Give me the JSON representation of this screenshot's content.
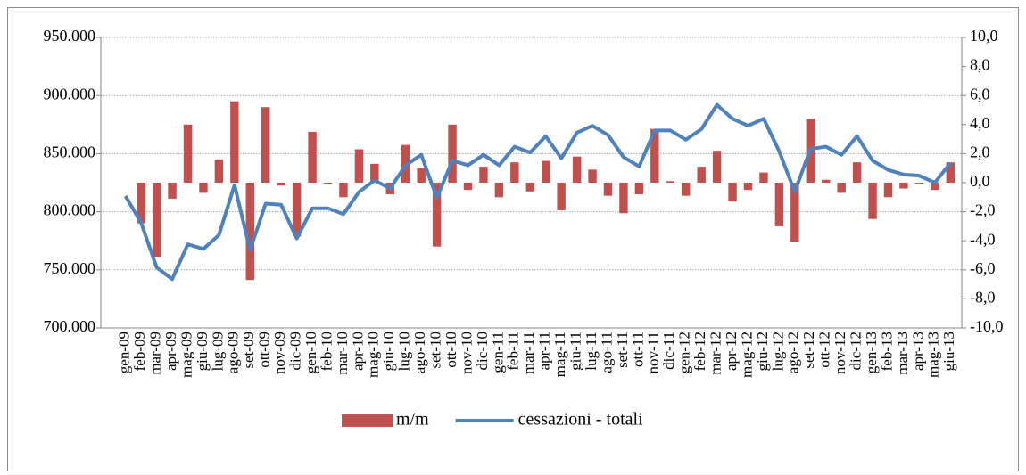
{
  "chart_data": {
    "type": "bar-line",
    "categories": [
      "gen-09",
      "feb-09",
      "mar-09",
      "apr-09",
      "mag-09",
      "giu-09",
      "lug-09",
      "ago-09",
      "set-09",
      "ott-09",
      "nov-09",
      "dic-09",
      "gen-10",
      "feb-10",
      "mar-10",
      "apr-10",
      "mag-10",
      "giu-10",
      "lug-10",
      "ago-10",
      "set-10",
      "ott-10",
      "nov-10",
      "dic-10",
      "gen-11",
      "feb-11",
      "mar-11",
      "apr-11",
      "mag-11",
      "giu-11",
      "lug-11",
      "ago-11",
      "set-11",
      "ott-11",
      "nov-11",
      "dic-11",
      "gen-12",
      "feb-12",
      "mar-12",
      "apr-12",
      "mag-12",
      "giu-12",
      "lug-12",
      "ago-12",
      "set-12",
      "ott-12",
      "nov-12",
      "dic-12",
      "gen-13",
      "feb-13",
      "mar-13",
      "apr-13",
      "mag-13",
      "giu-13"
    ],
    "series": [
      {
        "name": "m/m",
        "type": "bar",
        "axis": "y2",
        "color": "#c0504d",
        "values": [
          0.0,
          -2.8,
          -5.1,
          -1.1,
          4.0,
          -0.7,
          1.6,
          5.6,
          -6.7,
          5.2,
          -0.2,
          -3.7,
          3.5,
          -0.1,
          -1.0,
          2.3,
          1.3,
          -0.8,
          2.6,
          1.0,
          -4.4,
          4.0,
          -0.5,
          1.1,
          -1.0,
          1.4,
          -0.6,
          1.5,
          -1.9,
          1.8,
          0.9,
          -0.9,
          -2.1,
          -0.8,
          3.7,
          0.1,
          -0.9,
          1.1,
          2.2,
          -1.3,
          -0.5,
          0.7,
          -3.0,
          -4.1,
          4.4,
          0.2,
          -0.7,
          1.4,
          -2.5,
          -1.0,
          -0.4,
          -0.1,
          -0.5,
          1.4
        ]
      },
      {
        "name": "cessazioni - totali",
        "type": "line",
        "axis": "y",
        "color": "#4f81bd",
        "values": [
          813500,
          790500,
          752000,
          742000,
          772000,
          768000,
          780000,
          823000,
          767000,
          807000,
          806000,
          777000,
          803000,
          803000,
          798000,
          817000,
          827000,
          820000,
          840000,
          849000,
          812000,
          844000,
          840000,
          849000,
          840000,
          856000,
          851000,
          865000,
          846000,
          868000,
          874000,
          866000,
          847000,
          839000,
          870000,
          870000,
          862000,
          871000,
          892000,
          880000,
          874000,
          880000,
          852000,
          817000,
          854000,
          856000,
          849000,
          865000,
          844000,
          836000,
          832000,
          831000,
          825000,
          842000
        ]
      }
    ],
    "ylim": [
      700000,
      950000
    ],
    "yticks": [
      {
        "value": 700000,
        "label": "700.000"
      },
      {
        "value": 750000,
        "label": "750.000"
      },
      {
        "value": 800000,
        "label": "800.000"
      },
      {
        "value": 850000,
        "label": "850.000"
      },
      {
        "value": 900000,
        "label": "900.000"
      },
      {
        "value": 950000,
        "label": "950.000"
      }
    ],
    "y2lim": [
      -10,
      10
    ],
    "y2ticks": [
      {
        "value": -10,
        "label": "-10,0"
      },
      {
        "value": -8,
        "label": "-8,0"
      },
      {
        "value": -6,
        "label": "-6,0"
      },
      {
        "value": -4,
        "label": "-4,0"
      },
      {
        "value": -2,
        "label": "-2,0"
      },
      {
        "value": 0,
        "label": "0,0"
      },
      {
        "value": 2,
        "label": "2,0"
      },
      {
        "value": 4,
        "label": "4,0"
      },
      {
        "value": 6,
        "label": "6,0"
      },
      {
        "value": 8,
        "label": "8,0"
      },
      {
        "value": 10,
        "label": "10,0"
      }
    ],
    "grid": true,
    "legend": "bottom"
  }
}
